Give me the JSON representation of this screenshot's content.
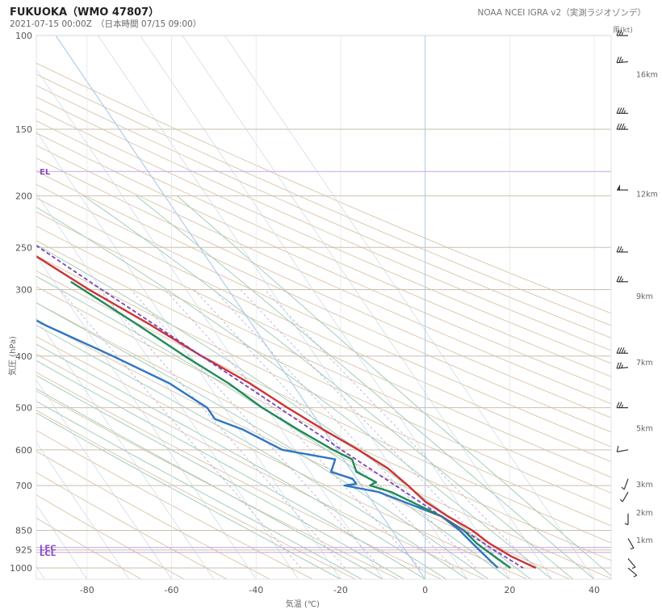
{
  "title": "FUKUOKA（WMO 47807）",
  "subtitle": "2021-07-15 00:00Z　（日本時間 07/15 09:00）",
  "source": "NOAA NCEI IGRA v2（実測ラジオゾンデ）",
  "chart_data": {
    "type": "line",
    "title": "FUKUOKA（WMO 47807）",
    "xlabel": "気温 (℃)",
    "ylabel": "気圧 (hPa)",
    "xlim": [
      -92,
      44
    ],
    "ylim": [
      1050,
      100
    ],
    "y_scale": "log",
    "skew": true,
    "grid": true,
    "x_ticks": [
      "-80",
      "-60",
      "-40",
      "-20",
      "0",
      "20",
      "40"
    ],
    "y_ticks": [
      "100",
      "150",
      "200",
      "250",
      "300",
      "400",
      "500",
      "600",
      "700",
      "850",
      "925",
      "1000"
    ],
    "wind_label": "風(kt)",
    "height_labels": [
      {
        "p": 118,
        "label": "16km"
      },
      {
        "p": 198,
        "label": "12km"
      },
      {
        "p": 308,
        "label": "9km"
      },
      {
        "p": 410,
        "label": "7km"
      },
      {
        "p": 545,
        "label": "5km"
      },
      {
        "p": 695,
        "label": "3km"
      },
      {
        "p": 785,
        "label": "2km"
      },
      {
        "p": 885,
        "label": "1km"
      }
    ],
    "levels": [
      {
        "label": "EL",
        "p": 180
      },
      {
        "label": "LFC",
        "p": 915
      },
      {
        "label": "LCL",
        "p": 935
      }
    ],
    "series": [
      {
        "name": "temperature",
        "color": "#cc3333",
        "points": [
          [
            100,
            -63.5
          ],
          [
            110,
            -63
          ],
          [
            150,
            -55.5
          ],
          [
            200,
            -52
          ],
          [
            250,
            -42
          ],
          [
            300,
            -33
          ],
          [
            350,
            -24
          ],
          [
            400,
            -17
          ],
          [
            450,
            -10
          ],
          [
            500,
            -5
          ],
          [
            550,
            0
          ],
          [
            600,
            5
          ],
          [
            650,
            9
          ],
          [
            700,
            11
          ],
          [
            750,
            12.5
          ],
          [
            800,
            15.5
          ],
          [
            850,
            19
          ],
          [
            900,
            21
          ],
          [
            950,
            24
          ],
          [
            975,
            26
          ],
          [
            1000,
            28
          ]
        ]
      },
      {
        "name": "dew point",
        "color": "#2e75c4",
        "points": [
          [
            285,
            -52
          ],
          [
            300,
            -53
          ],
          [
            301,
            -55
          ],
          [
            320,
            -55
          ],
          [
            350,
            -49
          ],
          [
            400,
            -38
          ],
          [
            450,
            -29
          ],
          [
            500,
            -24
          ],
          [
            525,
            -24
          ],
          [
            550,
            -19
          ],
          [
            600,
            -13
          ],
          [
            625,
            -2
          ],
          [
            660,
            -5
          ],
          [
            680,
            -1
          ],
          [
            695,
            -1
          ],
          [
            700,
            -4
          ],
          [
            720,
            3
          ],
          [
            800,
            14
          ],
          [
            850,
            16
          ],
          [
            900,
            17
          ],
          [
            950,
            18
          ],
          [
            1000,
            19
          ]
        ]
      },
      {
        "name": "wet-bulb",
        "color": "#1f8a5a",
        "points": [
          [
            290,
            -36
          ],
          [
            350,
            -27
          ],
          [
            400,
            -21
          ],
          [
            450,
            -15
          ],
          [
            500,
            -11
          ],
          [
            550,
            -6
          ],
          [
            600,
            -1
          ],
          [
            625,
            2
          ],
          [
            660,
            1
          ],
          [
            690,
            4
          ],
          [
            700,
            2
          ],
          [
            720,
            6
          ],
          [
            800,
            14
          ],
          [
            850,
            17
          ],
          [
            900,
            18
          ],
          [
            950,
            20
          ],
          [
            1000,
            22
          ]
        ]
      },
      {
        "name": "parcel",
        "color": "#7b44b5",
        "dashed": true,
        "points": [
          [
            100,
            -80
          ],
          [
            150,
            -61
          ],
          [
            200,
            -48
          ],
          [
            250,
            -38
          ],
          [
            300,
            -30
          ],
          [
            350,
            -23
          ],
          [
            400,
            -17
          ],
          [
            500,
            -7
          ],
          [
            600,
            1
          ],
          [
            700,
            8
          ],
          [
            800,
            14
          ],
          [
            850,
            17
          ],
          [
            925,
            21
          ],
          [
            1000,
            25
          ]
        ]
      }
    ],
    "winds": [
      {
        "p": 100,
        "spd": 25,
        "dir": 270
      },
      {
        "p": 112,
        "spd": 25,
        "dir": 265
      },
      {
        "p": 140,
        "spd": 35,
        "dir": 270
      },
      {
        "p": 150,
        "spd": 35,
        "dir": 270
      },
      {
        "p": 195,
        "spd": 50,
        "dir": 270
      },
      {
        "p": 255,
        "spd": 25,
        "dir": 270
      },
      {
        "p": 290,
        "spd": 25,
        "dir": 270
      },
      {
        "p": 395,
        "spd": 35,
        "dir": 270
      },
      {
        "p": 420,
        "spd": 25,
        "dir": 265
      },
      {
        "p": 500,
        "spd": 25,
        "dir": 270
      },
      {
        "p": 600,
        "spd": 10,
        "dir": 260
      },
      {
        "p": 680,
        "spd": 5,
        "dir": 200
      },
      {
        "p": 720,
        "spd": 5,
        "dir": 210
      },
      {
        "p": 790,
        "spd": 5,
        "dir": 180
      },
      {
        "p": 880,
        "spd": 5,
        "dir": 150
      },
      {
        "p": 960,
        "spd": 5,
        "dir": 140
      },
      {
        "p": 1000,
        "spd": 5,
        "dir": 130
      }
    ]
  }
}
